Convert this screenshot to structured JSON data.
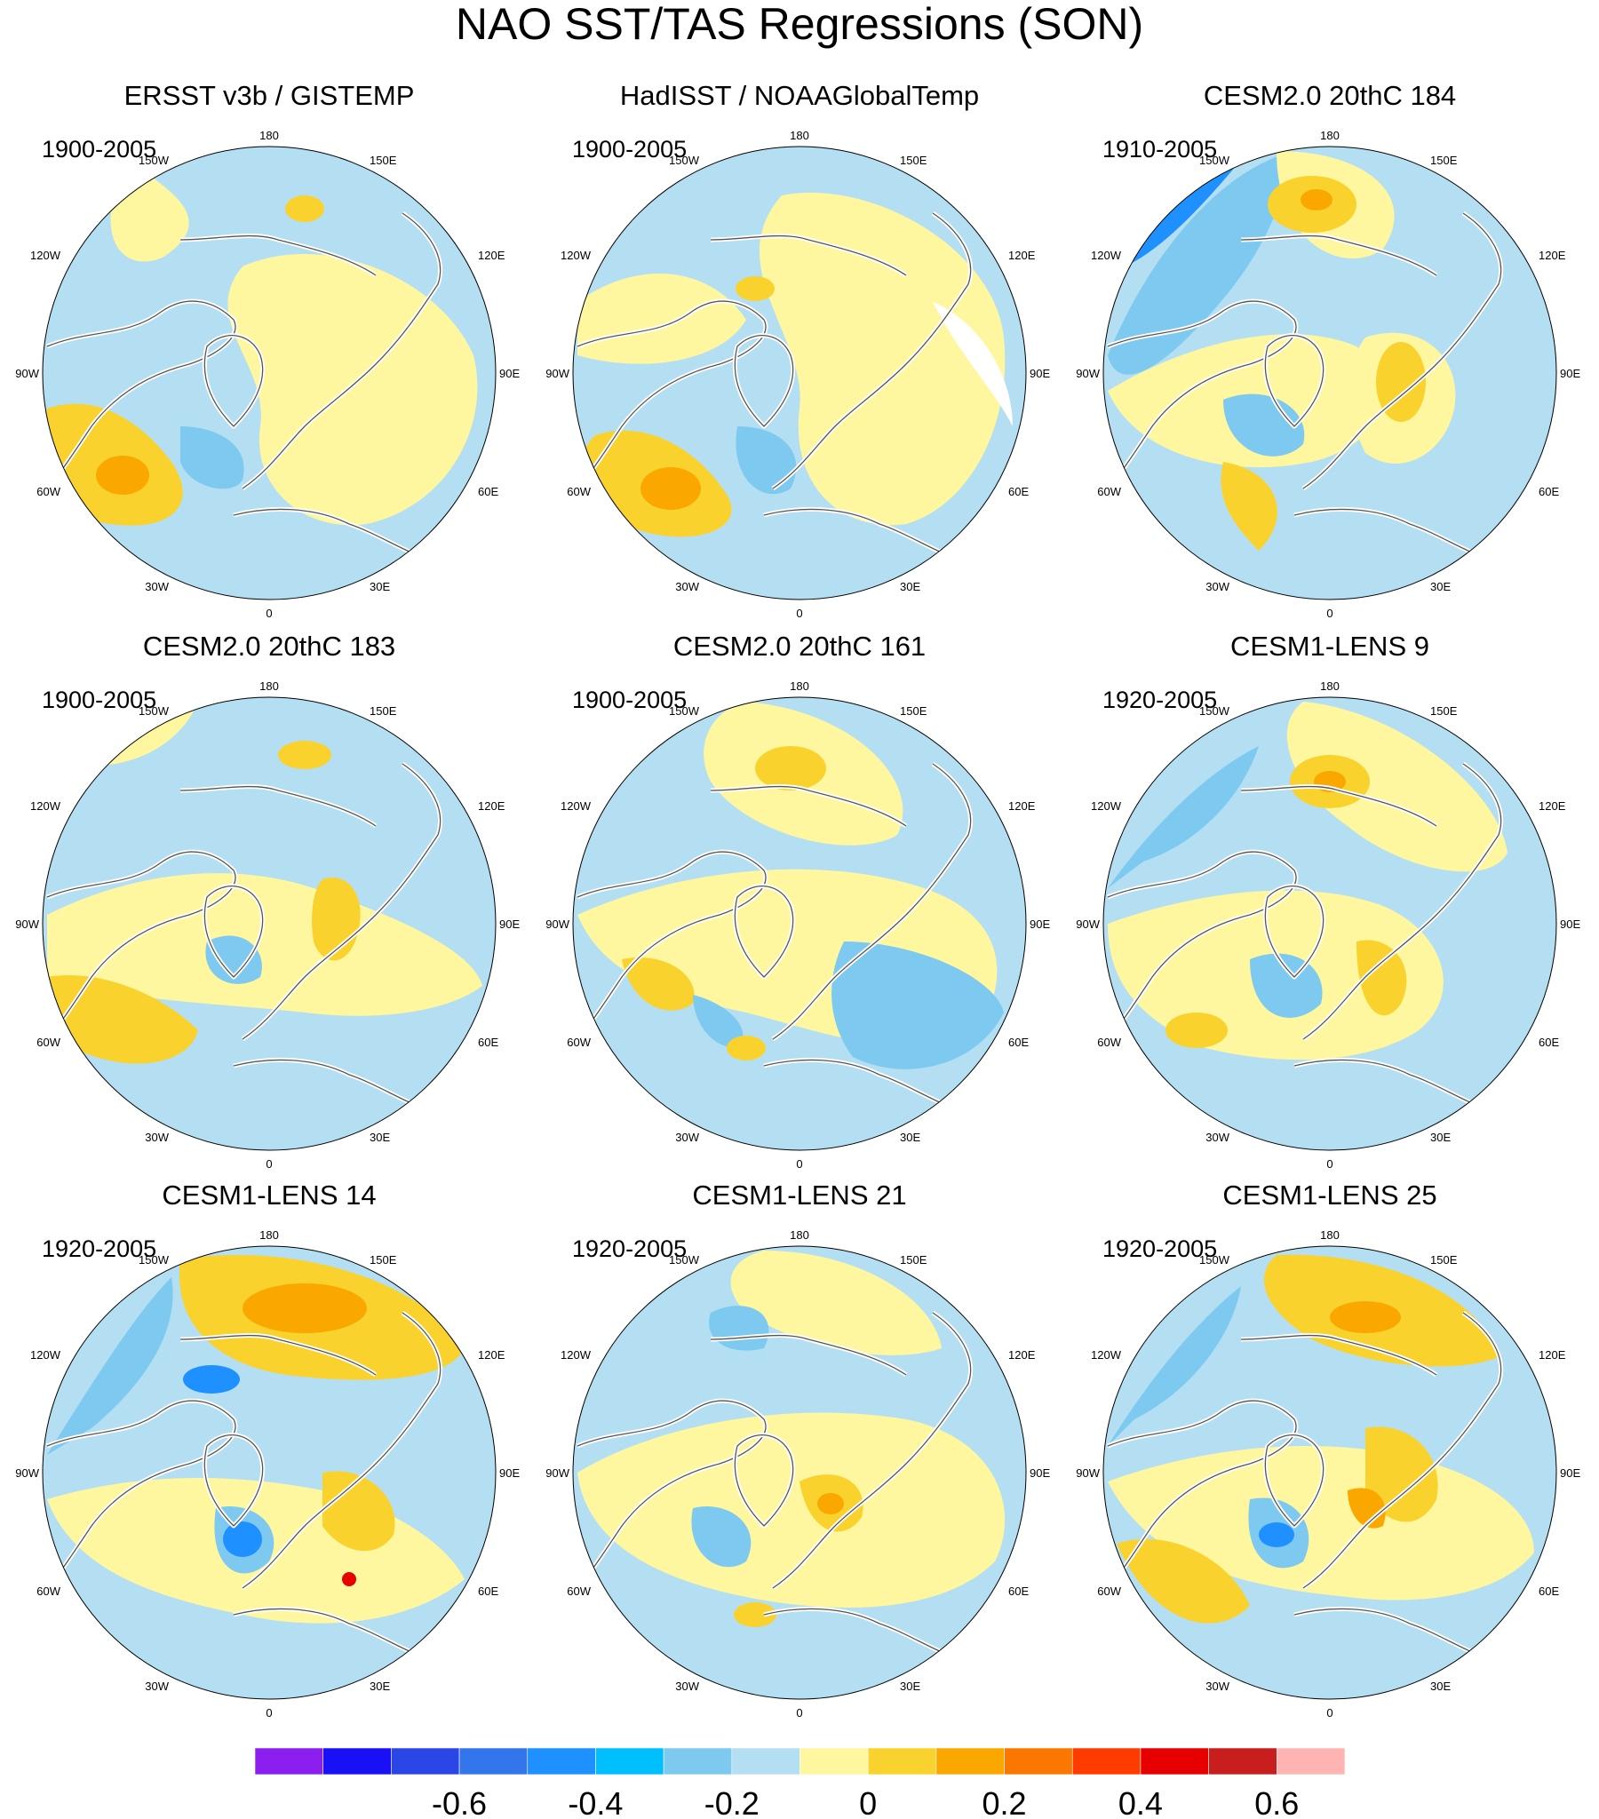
{
  "title": "NAO SST/TAS Regressions (SON)",
  "longitude_labels": {
    "top": "180",
    "bottom": "0",
    "upper_left": "150W",
    "upper_right": "150E",
    "mid_upper_left": "120W",
    "mid_upper_right": "120E",
    "left": "90W",
    "right": "90E",
    "mid_lower_left": "60W",
    "mid_lower_right": "60E",
    "lower_left": "30W",
    "lower_right": "30E"
  },
  "panels": [
    {
      "title": "ERSST v3b / GISTEMP",
      "period": "1900-2005"
    },
    {
      "title": "HadISST / NOAAGlobalTemp",
      "period": "1900-2005"
    },
    {
      "title": "CESM2.0 20thC 184",
      "period": "1910-2005"
    },
    {
      "title": "CESM2.0 20thC 183",
      "period": "1900-2005"
    },
    {
      "title": "CESM2.0 20thC 161",
      "period": "1900-2005"
    },
    {
      "title": "CESM1-LENS 9",
      "period": "1920-2005"
    },
    {
      "title": "CESM1-LENS 14",
      "period": "1920-2005"
    },
    {
      "title": "CESM1-LENS 21",
      "period": "1920-2005"
    },
    {
      "title": "CESM1-LENS 25",
      "period": "1920-2005"
    }
  ],
  "colorbar": {
    "colors": [
      "#8a1ff0",
      "#1a10f5",
      "#2b46e6",
      "#3375ea",
      "#1e90ff",
      "#00bfff",
      "#7ec9f0",
      "#b4dff2",
      "#fff7a0",
      "#fad22d",
      "#faa800",
      "#fa7800",
      "#ff3c00",
      "#e60000",
      "#c81e1e",
      "#ffb4b4"
    ],
    "tick_labels": [
      "-0.6",
      "-0.4",
      "-0.2",
      "0",
      "0.2",
      "0.4",
      "0.6"
    ]
  },
  "map_colors": {
    "background": "#b4dff2",
    "weak_positive": "#fff7a0",
    "positive": "#fad22d",
    "strong_positive": "#faa800",
    "negative": "#7ec9f0",
    "strong_negative": "#1e90ff",
    "coast": "#ffffff",
    "coast_edge": "#555555",
    "missing": "#ffffff"
  },
  "chart_data": {
    "type": "map",
    "projection": "north polar stereographic",
    "variable": "NAO SST/TAS regression",
    "season": "SON",
    "value_range": [
      -0.7,
      0.7
    ],
    "panels": [
      {
        "name": "ERSST v3b / GISTEMP",
        "period": "1900-2005",
        "pattern": "warm subtropical North Atlantic, cold subpolar North Atlantic, warm Eurasia"
      },
      {
        "name": "HadISST / NOAAGlobalTemp",
        "period": "1900-2005",
        "pattern": "warm subtropical North Atlantic, cold subpolar North Atlantic, warm Eurasia"
      },
      {
        "name": "CESM2.0 20thC 184",
        "period": "1910-2005",
        "pattern": "cold North-East Pacific, warm North Pacific, warm Siberia"
      },
      {
        "name": "CESM2.0 20thC 183",
        "period": "1900-2005",
        "pattern": "warm western Atlantic, warm Eurasia"
      },
      {
        "name": "CESM2.0 20thC 161",
        "period": "1900-2005",
        "pattern": "warm North Pacific, cool Labrador Sea"
      },
      {
        "name": "CESM1-LENS 9",
        "period": "1920-2005",
        "pattern": "warm North Pacific, warm Barents/Europe"
      },
      {
        "name": "CESM1-LENS 14",
        "period": "1920-2005",
        "pattern": "strong warm North Pacific, cold Greenland"
      },
      {
        "name": "CESM1-LENS 21",
        "period": "1920-2005",
        "pattern": "weak warm Eurasia, warm Barents Sea"
      },
      {
        "name": "CESM1-LENS 25",
        "period": "1920-2005",
        "pattern": "warm North Pacific, warm Atlantic, cold Greenland"
      }
    ]
  }
}
